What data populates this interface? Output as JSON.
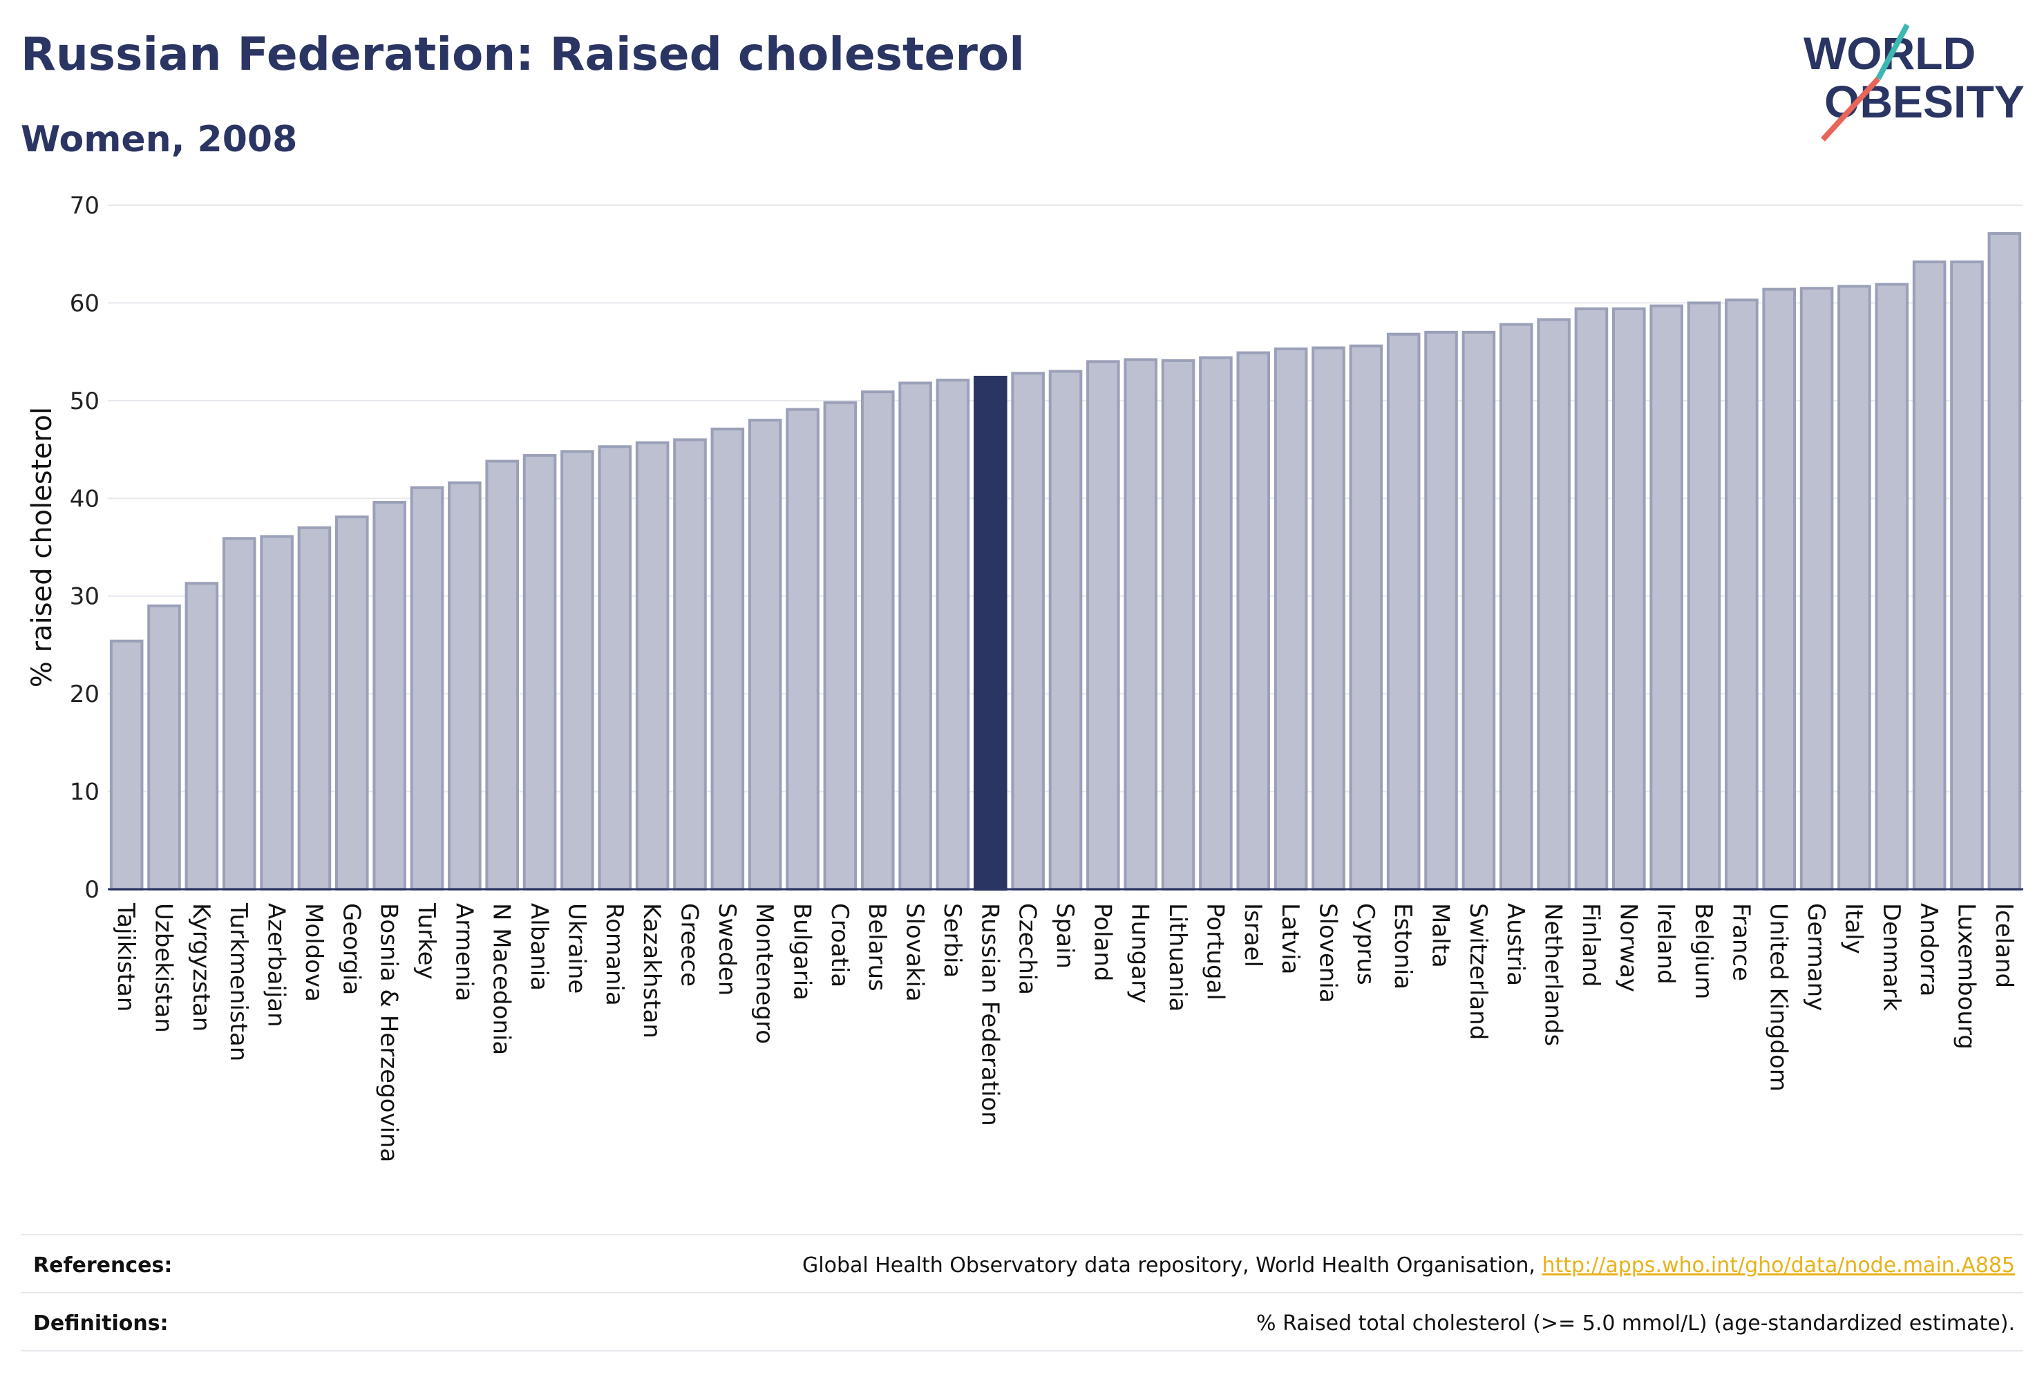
{
  "header": {
    "title": "Russian Federation: Raised cholesterol",
    "subtitle": "Women, 2008"
  },
  "logo": {
    "line1": "WORLD",
    "line2": "OBESITY",
    "accent_colors": [
      "#3cb8b0",
      "#e8655a"
    ]
  },
  "colors": {
    "bar": "#bcc0d1",
    "bar_stroke": "#9aa0b8",
    "highlight": "#2b3563",
    "grid": "#e6e8ee",
    "axis": "#2b3563",
    "link": "#e8b21b"
  },
  "chart_data": {
    "type": "bar",
    "ylabel": "% raised cholesterol",
    "ylim": [
      0,
      70
    ],
    "yticks": [
      0,
      10,
      20,
      30,
      40,
      50,
      60,
      70
    ],
    "highlight": "Russian Federation",
    "categories": [
      "Tajikistan",
      "Uzbekistan",
      "Kyrgyzstan",
      "Turkmenistan",
      "Azerbaijan",
      "Moldova",
      "Georgia",
      "Bosnia & Herzegovina",
      "Turkey",
      "Armenia",
      "N Macedonia",
      "Albania",
      "Ukraine",
      "Romania",
      "Kazakhstan",
      "Greece",
      "Sweden",
      "Montenegro",
      "Bulgaria",
      "Croatia",
      "Belarus",
      "Slovakia",
      "Serbia",
      "Russian Federation",
      "Czechia",
      "Spain",
      "Poland",
      "Hungary",
      "Lithuania",
      "Portugal",
      "Israel",
      "Latvia",
      "Slovenia",
      "Cyprus",
      "Estonia",
      "Malta",
      "Switzerland",
      "Austria",
      "Netherlands",
      "Finland",
      "Norway",
      "Ireland",
      "Belgium",
      "France",
      "United Kingdom",
      "Germany",
      "Italy",
      "Denmark",
      "Andorra",
      "Luxembourg",
      "Iceland"
    ],
    "values": [
      25.4,
      29.0,
      31.3,
      35.9,
      36.1,
      37.0,
      38.1,
      39.6,
      41.1,
      41.6,
      43.8,
      44.4,
      44.8,
      45.3,
      45.7,
      46.0,
      47.1,
      48.0,
      49.1,
      49.8,
      50.9,
      51.8,
      52.1,
      52.4,
      52.8,
      53.0,
      54.0,
      54.2,
      54.1,
      54.4,
      54.9,
      55.3,
      55.4,
      55.6,
      56.8,
      57.0,
      57.0,
      57.8,
      58.3,
      59.4,
      59.4,
      59.7,
      60.0,
      60.3,
      61.4,
      61.5,
      61.7,
      61.9,
      64.2,
      64.2,
      67.1
    ]
  },
  "footer": {
    "references_label": "References:",
    "references_text": "Global Health Observatory data repository, World Health Organisation, ",
    "references_link": "http://apps.who.int/gho/data/node.main.A885",
    "definitions_label": "Definitions:",
    "definitions_text": "% Raised total cholesterol (>= 5.0 mmol/L) (age-standardized estimate)."
  }
}
